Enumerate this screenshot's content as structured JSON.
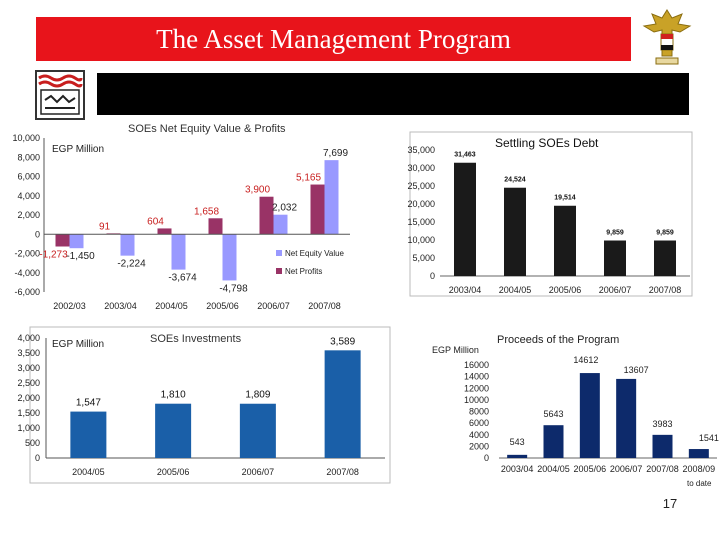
{
  "slide": {
    "title": "The Asset Management Program",
    "page_number": "17",
    "colors": {
      "title_bg": "#e8141b",
      "title_text": "#ffffff"
    }
  },
  "chart_data": [
    {
      "id": "equity",
      "type": "bar",
      "title": "SOEs Net Equity Value & Profits",
      "unit_label": "EGP Million",
      "categories": [
        "2002/03",
        "2003/04",
        "2004/05",
        "2005/06",
        "2006/07",
        "2007/08"
      ],
      "series": [
        {
          "name": "Net Equity Value",
          "color": "#9999ff",
          "values": [
            -1450,
            -2224,
            -3674,
            -4798,
            2032,
            7699
          ],
          "labels": [
            "-1,450",
            "-2,224",
            "-3,674",
            "-4,798",
            "2,032",
            "7,699"
          ]
        },
        {
          "name": "Net Profits",
          "color": "#993366",
          "values": [
            -1273,
            91,
            604,
            1658,
            3900,
            5165
          ],
          "labels": [
            "-1,273",
            "91",
            "604",
            "1,658",
            "3,900",
            "5,165"
          ]
        }
      ],
      "yticks": [
        "10,000",
        "8,000",
        "6,000",
        "4,000",
        "2,000",
        "0",
        "-2,000",
        "-4,000",
        "-6,000"
      ],
      "ytick_values": [
        10000,
        8000,
        6000,
        4000,
        2000,
        0,
        -2000,
        -4000,
        -6000
      ],
      "ylim": [
        -6000,
        10000
      ],
      "legend": "bottom-right"
    },
    {
      "id": "debt",
      "type": "bar",
      "title": "Settling SOEs Debt",
      "categories": [
        "2003/04",
        "2004/05",
        "2005/06",
        "2006/07",
        "2007/08"
      ],
      "values": [
        31463,
        24524,
        19514,
        9859,
        9859
      ],
      "labels": [
        "31,463",
        "24,524",
        "19,514",
        "9,859",
        "9,859"
      ],
      "yticks": [
        "35,000",
        "30,000",
        "25,000",
        "20,000",
        "15,000",
        "10,000",
        "5,000",
        "0"
      ],
      "ytick_values": [
        35000,
        30000,
        25000,
        20000,
        15000,
        10000,
        5000,
        0
      ],
      "ylim": [
        0,
        35000
      ],
      "color": "#1a1a1a"
    },
    {
      "id": "investments",
      "type": "bar",
      "title": "SOEs Investments",
      "unit_label": "EGP Million",
      "categories": [
        "2004/05",
        "2005/06",
        "2006/07",
        "2007/08"
      ],
      "values": [
        1547,
        1810,
        1809,
        3589
      ],
      "labels": [
        "1,547",
        "1,810",
        "1,809",
        "3,589"
      ],
      "yticks": [
        "4,000",
        "3,500",
        "3,000",
        "2,500",
        "2,000",
        "1,500",
        "1,000",
        "500",
        "0"
      ],
      "ytick_values": [
        4000,
        3500,
        3000,
        2500,
        2000,
        1500,
        1000,
        500,
        0
      ],
      "ylim": [
        0,
        4000
      ],
      "color": "#1a5fa8"
    },
    {
      "id": "proceeds",
      "type": "bar",
      "title": "Proceeds of the Program",
      "unit_label": "EGP Million",
      "categories": [
        "2003/04",
        "2004/05",
        "2005/06",
        "2006/07",
        "2007/08",
        "2008/09"
      ],
      "note": "to date",
      "values": [
        543,
        5643,
        14612,
        13607,
        3983,
        1541
      ],
      "labels": [
        "543",
        "5643",
        "14612",
        "13607",
        "3983",
        "1541"
      ],
      "yticks": [
        "16000",
        "14000",
        "12000",
        "10000",
        "8000",
        "6000",
        "4000",
        "2000",
        "0"
      ],
      "ytick_values": [
        16000,
        14000,
        12000,
        10000,
        8000,
        6000,
        4000,
        2000,
        0
      ],
      "ylim": [
        0,
        16000
      ],
      "color": "#0d2a6b"
    }
  ]
}
